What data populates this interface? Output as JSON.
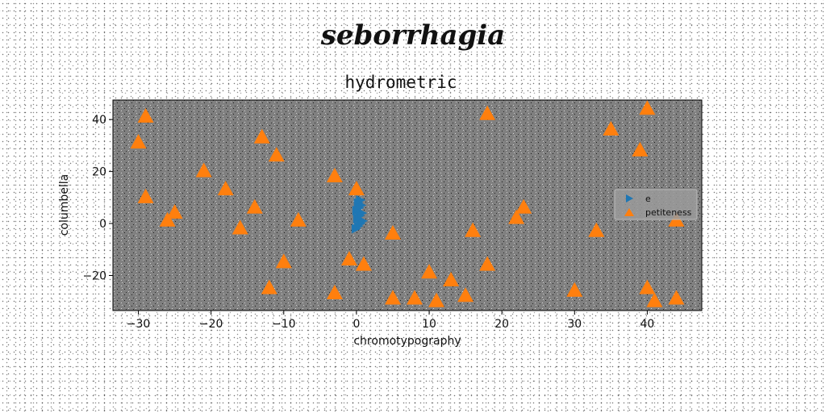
{
  "suptitle": "seborrhagia",
  "chart_data": {
    "type": "scatter",
    "title": "hydrometric",
    "xlabel": "chromotypography",
    "ylabel": "columbella",
    "xlim": [
      -33.5,
      47.5
    ],
    "ylim": [
      -33.5,
      47.5
    ],
    "xticks": [
      -30,
      -20,
      -10,
      0,
      10,
      20,
      30,
      40
    ],
    "yticks": [
      -20,
      0,
      20,
      40
    ],
    "grid": false,
    "legend": "center-right",
    "series": [
      {
        "name": "e",
        "marker": "triangle-right",
        "color": "#1f77b4",
        "x": [
          0,
          0.3,
          0.6,
          0.9,
          0.2,
          0.5,
          0.8,
          0.1,
          0.4,
          0.7,
          0.3,
          0.6
        ],
        "y": [
          -2,
          -1,
          0,
          1,
          2,
          3,
          4,
          5,
          6,
          7,
          8,
          9
        ]
      },
      {
        "name": "petiteness",
        "marker": "triangle-up",
        "color": "#ff7f0e",
        "x": [
          -29,
          -30,
          -29,
          -21,
          -18,
          -26,
          -25,
          -16,
          -14,
          -13,
          -11,
          -8,
          -10,
          -12,
          -3,
          -3,
          -1,
          0,
          1,
          5,
          5,
          8,
          10,
          11,
          13,
          15,
          16,
          18,
          18,
          22,
          23,
          30,
          33,
          35,
          39,
          40,
          40,
          41,
          44,
          44
        ],
        "y": [
          41,
          31,
          10,
          20,
          13,
          1,
          4,
          -2,
          6,
          33,
          26,
          1,
          -15,
          -25,
          18,
          -27,
          -14,
          13,
          -16,
          -4,
          -29,
          -29,
          -19,
          -30,
          -22,
          -28,
          -3,
          -16,
          42,
          2,
          6,
          -26,
          -3,
          36,
          28,
          44,
          -25,
          -30,
          1,
          -29
        ]
      }
    ]
  }
}
